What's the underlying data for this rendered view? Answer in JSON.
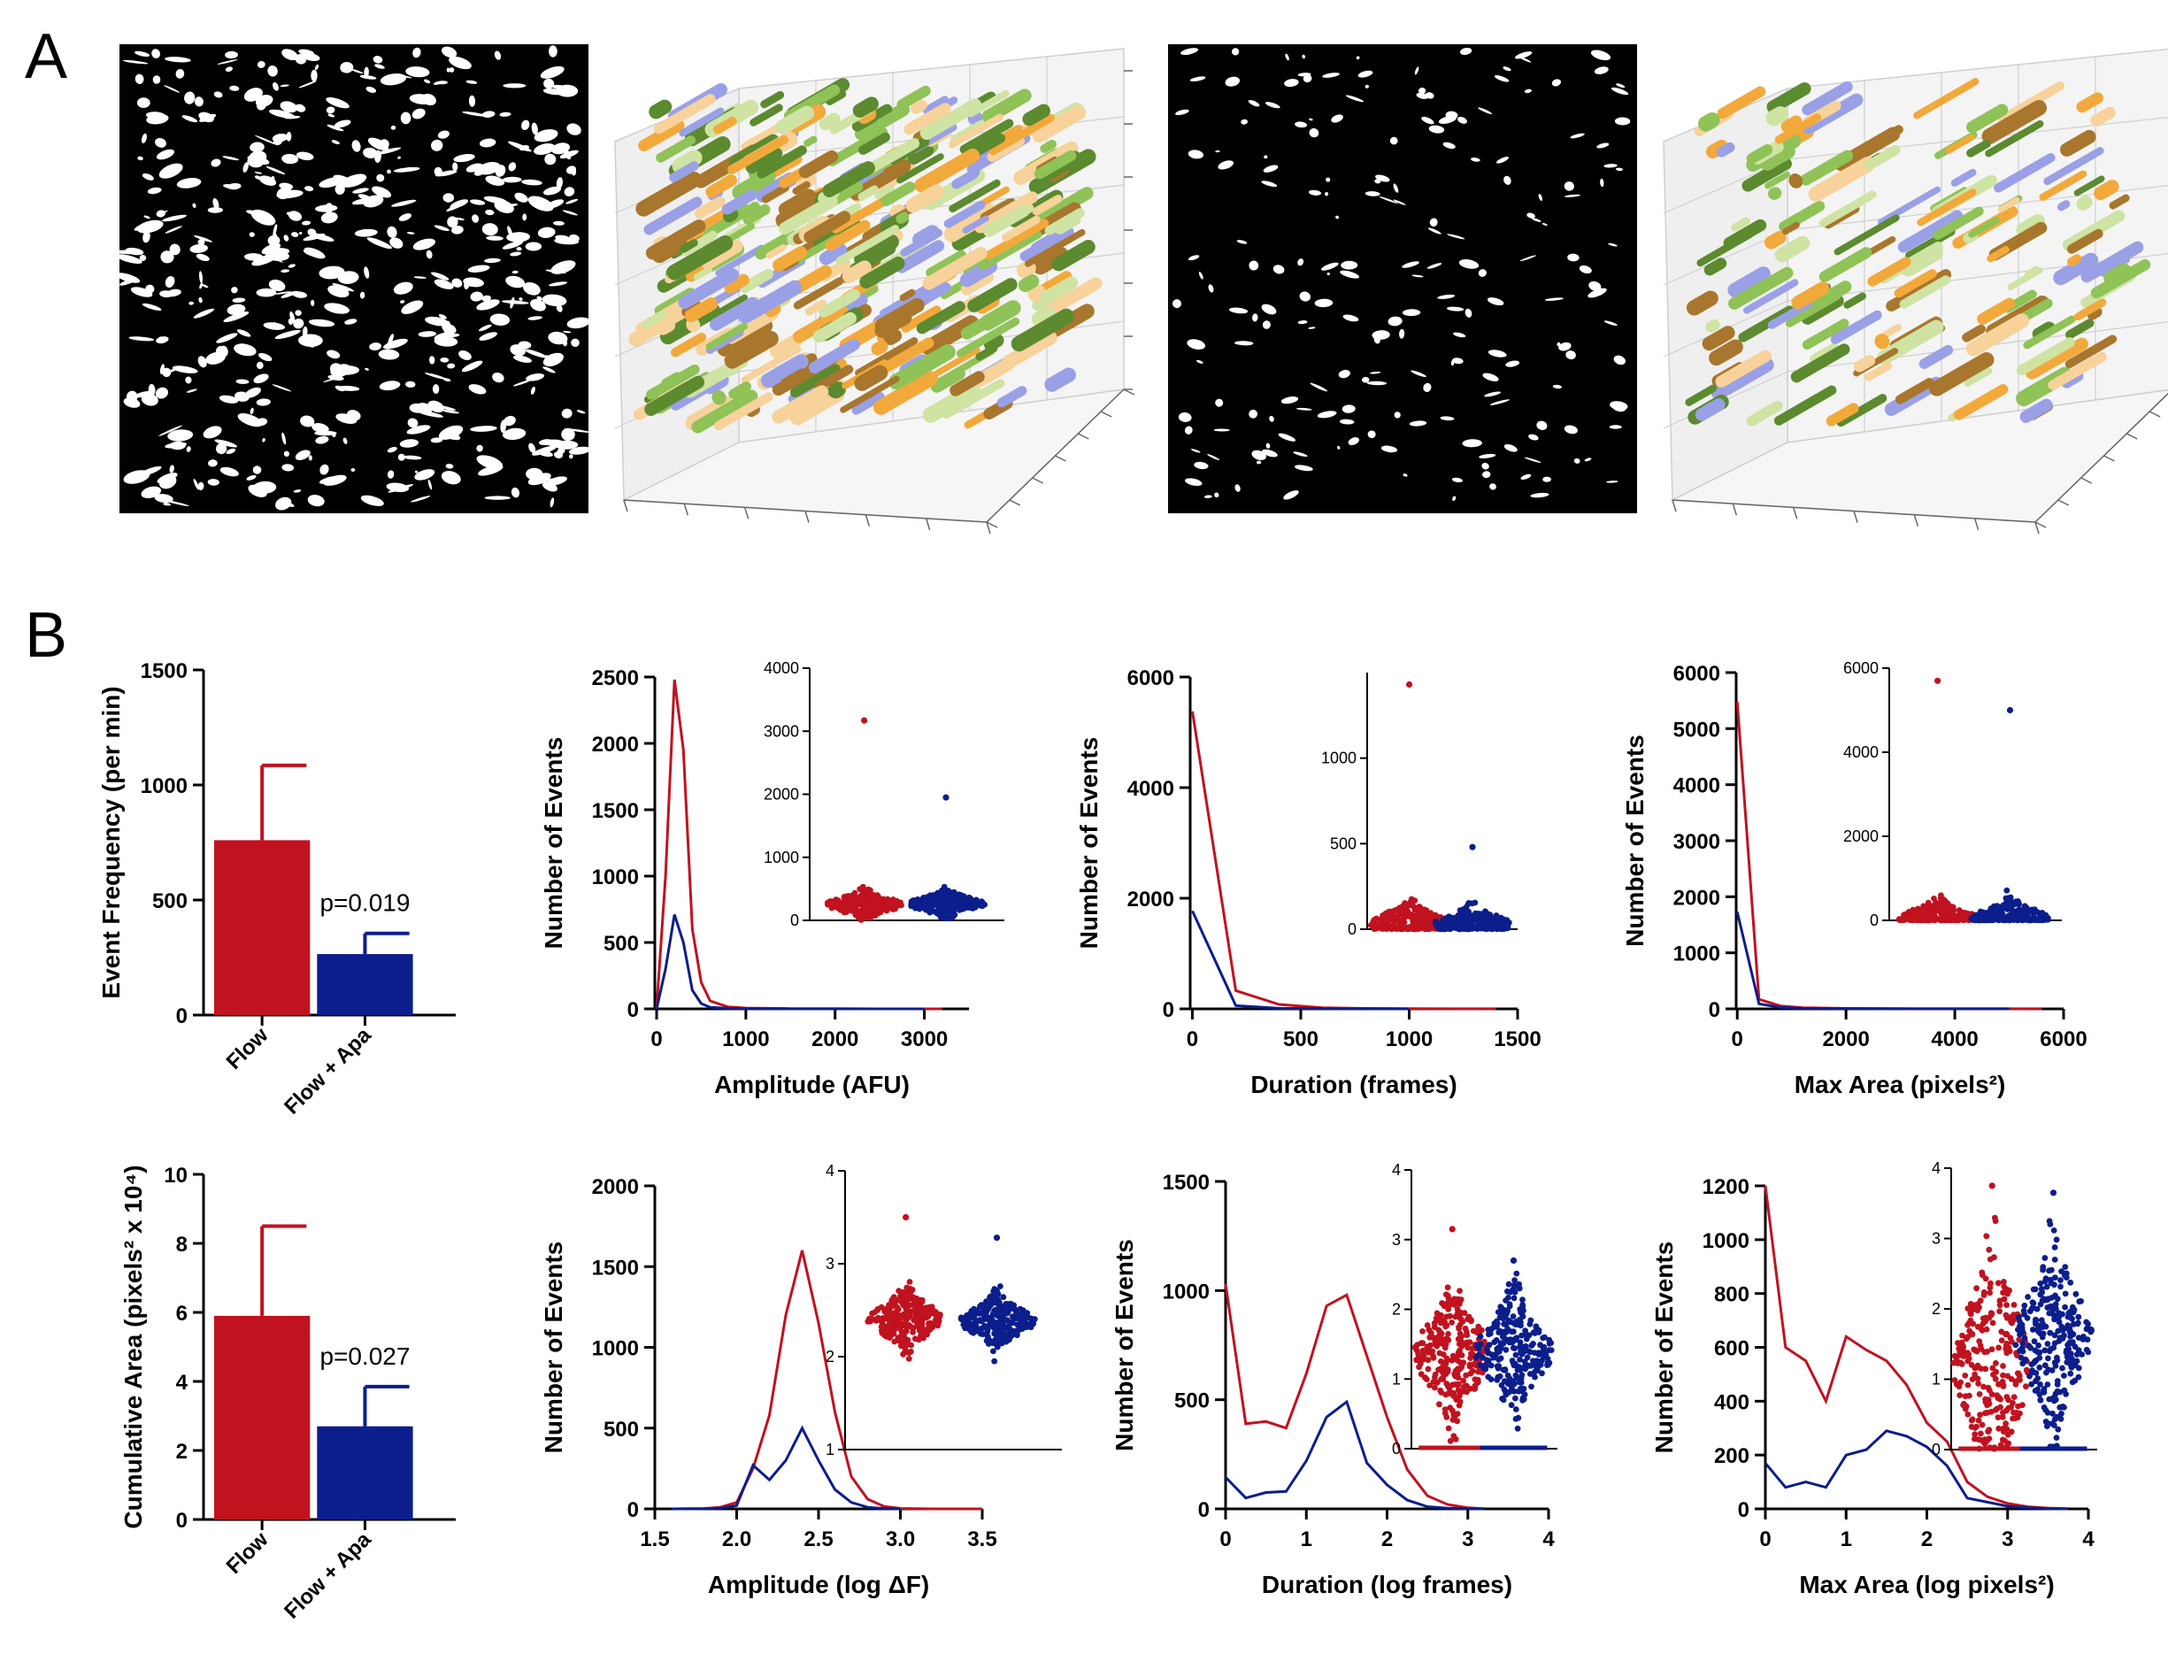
{
  "panel_labels": [
    "A",
    "B"
  ],
  "colors": {
    "flow": "#c1121f",
    "flow_apa": "#0b1e8c",
    "axis": "#000000"
  },
  "panel_a": {
    "blob_colors": [
      "#9aa0e6",
      "#5c8a2f",
      "#8fc257",
      "#cfe3a3",
      "#f2a93b",
      "#f7d29a",
      "#a8762d"
    ]
  },
  "chart_data": [
    {
      "id": "event-frequency",
      "type": "bar",
      "categories": [
        "Flow",
        "Flow + Apa"
      ],
      "values": [
        760,
        265
      ],
      "errors": [
        325,
        90
      ],
      "ylabel": "Event Frequency (per min)",
      "ylim": [
        0,
        1500
      ],
      "yticks": [
        0,
        500,
        1000,
        1500
      ],
      "annotation": "p=0.019",
      "colors": [
        "#c1121f",
        "#0b1e8c"
      ]
    },
    {
      "id": "cumulative-area",
      "type": "bar",
      "categories": [
        "Flow",
        "Flow + Apa"
      ],
      "values": [
        5.9,
        2.7
      ],
      "errors": [
        2.6,
        1.15
      ],
      "ylabel": "Cumulative Area (pixels² x 10⁴)",
      "ylim": [
        0,
        10
      ],
      "yticks": [
        0,
        2,
        4,
        6,
        8,
        10
      ],
      "annotation": "p=0.027",
      "colors": [
        "#c1121f",
        "#0b1e8c"
      ]
    },
    {
      "id": "amplitude",
      "type": "line",
      "xlabel": "Amplitude (AFU)",
      "ylabel": "Number of Events",
      "xlim": [
        -20,
        3500
      ],
      "ylim": [
        0,
        2500
      ],
      "xticks": [
        0,
        1000,
        2000,
        3000
      ],
      "yticks": [
        0,
        500,
        1000,
        1500,
        2000,
        2500
      ],
      "series": [
        {
          "x": [
            0,
            100,
            200,
            300,
            400,
            500,
            600,
            800,
            1000,
            1500,
            2000,
            2500,
            3000,
            3200
          ],
          "y": [
            0,
            1000,
            2480,
            1950,
            600,
            200,
            60,
            15,
            6,
            2,
            1,
            0,
            0,
            0
          ]
        },
        {
          "x": [
            0,
            100,
            200,
            300,
            400,
            500,
            600,
            800,
            1000,
            1500,
            2000,
            2500,
            3000
          ],
          "y": [
            0,
            300,
            710,
            500,
            140,
            40,
            12,
            4,
            1,
            0,
            0,
            0,
            0
          ]
        }
      ],
      "inset": {
        "ylim": [
          0,
          4000
        ],
        "yticks": [
          0,
          1000,
          2000,
          3000,
          4000
        ],
        "groups": [
          {
            "center": 250,
            "spread": 100,
            "max": 3170
          },
          {
            "center": 260,
            "spread": 95,
            "max": 1950
          }
        ]
      }
    },
    {
      "id": "duration",
      "type": "line",
      "xlabel": "Duration (frames)",
      "ylabel": "Number of Events",
      "xlim": [
        -10,
        1500
      ],
      "ylim": [
        0,
        6000
      ],
      "xticks": [
        0,
        500,
        1000,
        1500
      ],
      "yticks": [
        0,
        2000,
        4000,
        6000
      ],
      "series": [
        {
          "x": [
            0,
            200,
            400,
            600,
            800,
            1000,
            1200,
            1400
          ],
          "y": [
            5380,
            330,
            80,
            20,
            8,
            4,
            2,
            1
          ]
        },
        {
          "x": [
            0,
            200,
            400,
            600,
            800,
            1000
          ],
          "y": [
            1770,
            60,
            10,
            3,
            1,
            0
          ]
        }
      ],
      "inset": {
        "ylim": [
          0,
          1500
        ],
        "yticks": [
          0,
          500,
          1000
        ],
        "groups": [
          {
            "center": 30,
            "spread": 60,
            "max": 1430
          },
          {
            "center": 30,
            "spread": 50,
            "max": 480
          }
        ]
      }
    },
    {
      "id": "max-area",
      "type": "line",
      "xlabel": "Max Area (pixels²)",
      "ylabel": "Number of Events",
      "xlim": [
        -20,
        6000
      ],
      "ylim": [
        0,
        6000
      ],
      "xticks": [
        0,
        2000,
        4000,
        6000
      ],
      "yticks": [
        0,
        1000,
        2000,
        3000,
        4000,
        5000,
        6000
      ],
      "series": [
        {
          "x": [
            0,
            400,
            800,
            1200,
            2000,
            3000,
            4000,
            5000,
            5600
          ],
          "y": [
            5480,
            170,
            50,
            20,
            8,
            3,
            2,
            1,
            1
          ]
        },
        {
          "x": [
            0,
            400,
            800,
            1200,
            2000,
            3000,
            4000,
            5000
          ],
          "y": [
            1730,
            90,
            25,
            10,
            4,
            2,
            1,
            1
          ]
        }
      ],
      "inset": {
        "ylim": [
          0,
          6000
        ],
        "yticks": [
          0,
          2000,
          4000,
          6000
        ],
        "groups": [
          {
            "center": 50,
            "spread": 200,
            "max": 5700
          },
          {
            "center": 60,
            "spread": 200,
            "max": 5000
          }
        ]
      }
    },
    {
      "id": "log-amplitude",
      "type": "line",
      "xlabel": "Amplitude (log ΔF)",
      "ylabel": "Number of Events",
      "xlim": [
        1.5,
        3.5
      ],
      "ylim": [
        0,
        2000
      ],
      "xticks": [
        1.5,
        2.0,
        2.5,
        3.0,
        3.5
      ],
      "ytick_labels": [
        "0",
        "500",
        "1000",
        "1500",
        "2000"
      ],
      "yticks": [
        0,
        500,
        1000,
        1500,
        2000
      ],
      "xtick_labels": [
        "1.5",
        "2.0",
        "2.5",
        "3.0",
        "3.5"
      ],
      "series": [
        {
          "x": [
            1.6,
            1.8,
            1.9,
            2.0,
            2.1,
            2.2,
            2.3,
            2.4,
            2.5,
            2.6,
            2.7,
            2.8,
            2.9,
            3.0,
            3.2,
            3.5
          ],
          "y": [
            0,
            2,
            10,
            40,
            250,
            580,
            1200,
            1600,
            1150,
            600,
            200,
            60,
            15,
            3,
            0,
            0
          ]
        },
        {
          "x": [
            1.6,
            1.8,
            1.9,
            2.0,
            2.1,
            2.2,
            2.3,
            2.4,
            2.5,
            2.6,
            2.7,
            2.8,
            2.9,
            3.0
          ],
          "y": [
            0,
            1,
            5,
            20,
            270,
            180,
            300,
            500,
            300,
            120,
            40,
            10,
            2,
            0
          ]
        }
      ],
      "inset": {
        "ylim": [
          1,
          4
        ],
        "yticks": [
          1,
          2,
          3,
          4
        ],
        "groups": [
          {
            "center": 2.4,
            "spread": 0.15,
            "min": 1.62,
            "max": 3.5
          },
          {
            "center": 2.38,
            "spread": 0.13,
            "min": 1.9,
            "max": 3.28
          }
        ]
      }
    },
    {
      "id": "log-duration",
      "type": "line",
      "xlabel": "Duration (log frames)",
      "ylabel": "Number of Events",
      "xlim": [
        0,
        4
      ],
      "ylim": [
        0,
        1500
      ],
      "xticks": [
        0,
        1,
        2,
        3,
        4
      ],
      "yticks": [
        0,
        500,
        1000,
        1500
      ],
      "series": [
        {
          "x": [
            0,
            0.25,
            0.5,
            0.75,
            1.0,
            1.25,
            1.5,
            1.75,
            2.0,
            2.25,
            2.5,
            2.75,
            3.0,
            3.2
          ],
          "y": [
            1030,
            390,
            400,
            370,
            620,
            930,
            980,
            700,
            420,
            180,
            60,
            20,
            5,
            1
          ]
        },
        {
          "x": [
            0,
            0.25,
            0.5,
            0.75,
            1.0,
            1.25,
            1.5,
            1.75,
            2.0,
            2.25,
            2.5,
            2.75,
            3.0,
            3.2
          ],
          "y": [
            145,
            50,
            75,
            80,
            220,
            420,
            490,
            210,
            110,
            40,
            10,
            3,
            1,
            0
          ]
        }
      ],
      "inset": {
        "ylim": [
          0,
          4
        ],
        "yticks": [
          0,
          1,
          2,
          3,
          4
        ],
        "groups": [
          {
            "center": 1.35,
            "spread": 0.45,
            "min": 0,
            "max": 3.15
          },
          {
            "center": 1.4,
            "spread": 0.4,
            "min": 0,
            "max": 2.7
          }
        ]
      }
    },
    {
      "id": "log-max-area",
      "type": "line",
      "xlabel": "Max Area (log pixels²)",
      "ylabel": "Number of Events",
      "xlim": [
        0,
        4
      ],
      "ylim": [
        0,
        1200
      ],
      "xticks": [
        0,
        1,
        2,
        3,
        4
      ],
      "yticks": [
        0,
        200,
        400,
        600,
        800,
        1000,
        1200
      ],
      "series": [
        {
          "x": [
            0,
            0.25,
            0.5,
            0.75,
            1.0,
            1.25,
            1.5,
            1.75,
            2.0,
            2.25,
            2.5,
            2.75,
            3.0,
            3.25,
            3.5,
            3.75
          ],
          "y": [
            1200,
            600,
            550,
            400,
            640,
            590,
            550,
            460,
            320,
            250,
            100,
            45,
            20,
            8,
            3,
            1
          ]
        },
        {
          "x": [
            0,
            0.25,
            0.5,
            0.75,
            1.0,
            1.25,
            1.5,
            1.75,
            2.0,
            2.25,
            2.5,
            2.75,
            3.0,
            3.25,
            3.5,
            3.75
          ],
          "y": [
            170,
            80,
            100,
            80,
            200,
            220,
            290,
            270,
            230,
            160,
            40,
            25,
            10,
            4,
            1,
            0
          ]
        }
      ],
      "inset": {
        "ylim": [
          0,
          4
        ],
        "yticks": [
          0,
          1,
          2,
          3,
          4
        ],
        "groups": [
          {
            "center": 1.2,
            "spread": 0.8,
            "min": 0,
            "max": 3.75
          },
          {
            "center": 1.6,
            "spread": 0.6,
            "min": 0,
            "max": 3.65
          }
        ]
      }
    }
  ]
}
